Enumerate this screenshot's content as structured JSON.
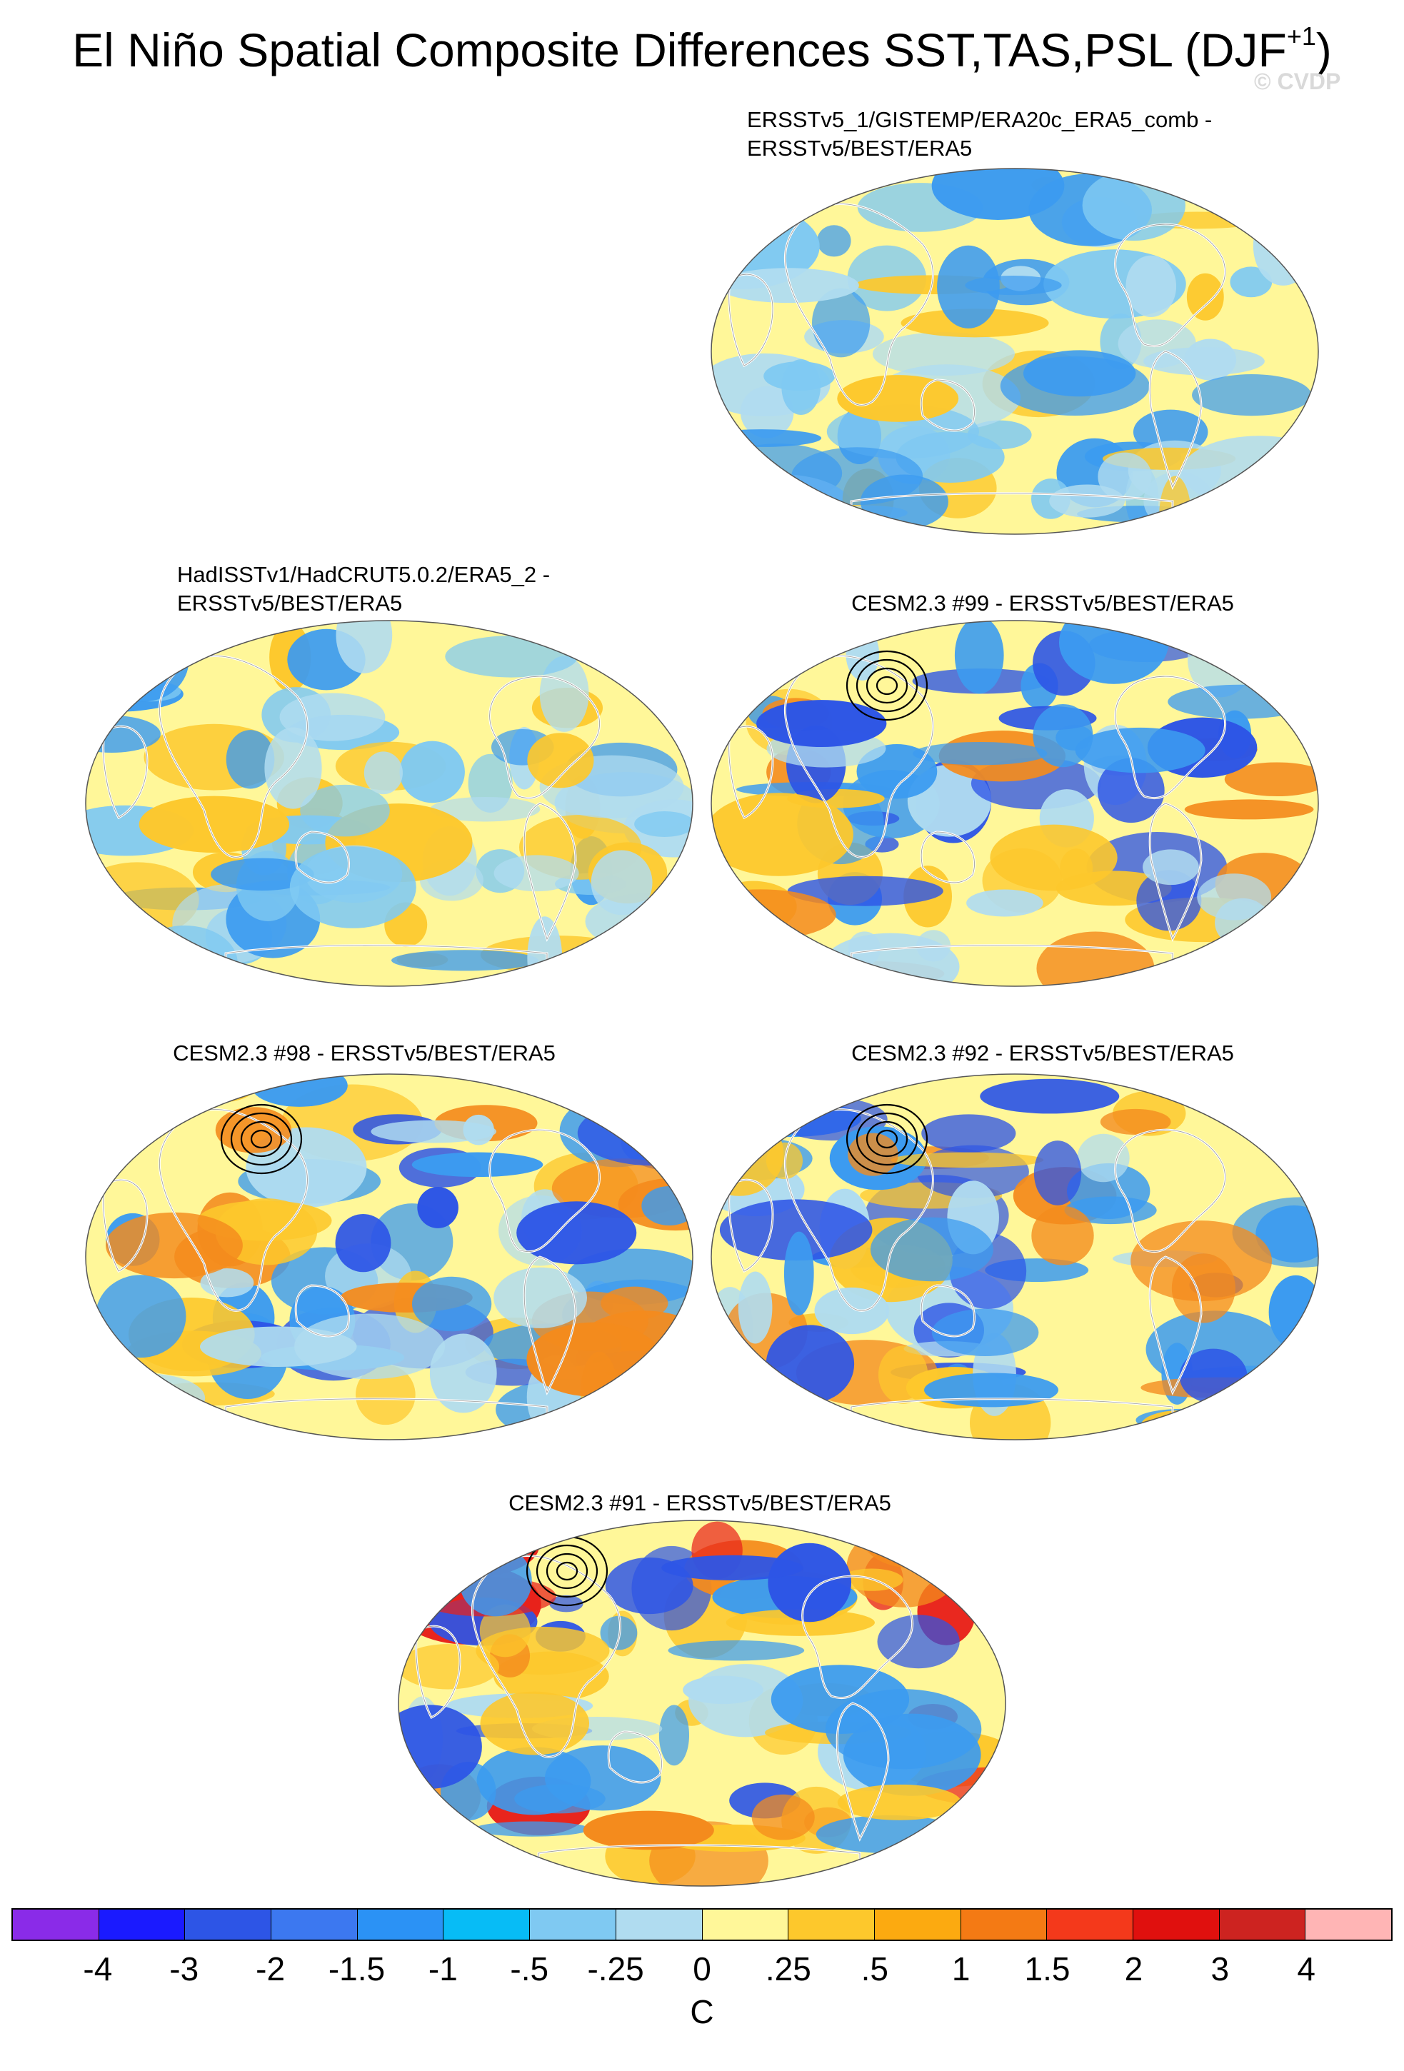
{
  "title": {
    "main": "El Niño Spatial Composite Differences SST,TAS,PSL (DJF",
    "sup": "+1",
    "close": ")"
  },
  "watermark": "© CVDP",
  "panels": [
    {
      "title_line1": "ERSSTv5_1/GISTEMP/ERA20c_ERA5_comb -",
      "title_line2": "ERSSTv5/BEST/ERA5",
      "dominant_color": "#fff799",
      "accent_colors": [
        "#b0dcf0",
        "#fdc82c",
        "#7fc9f2",
        "#3c9bf0"
      ]
    },
    {
      "title_line1": "HadISSTv1/HadCRUT5.0.2/ERA5_2 -",
      "title_line2": "ERSSTv5/BEST/ERA5",
      "dominant_color": "#fff799",
      "accent_colors": [
        "#b0dcf0",
        "#fdc82c",
        "#7fc9f2",
        "#3c9bf0"
      ]
    },
    {
      "title_line1": "CESM2.3 #99 - ERSSTv5/BEST/ERA5",
      "title_line2": "",
      "dominant_color": "#fff799",
      "accent_colors": [
        "#fdc82c",
        "#b0dcf0",
        "#3c9bf0",
        "#f48b1d",
        "#2d55e6"
      ]
    },
    {
      "title_line1": "CESM2.3 #98 - ERSSTv5/BEST/ERA5",
      "title_line2": "",
      "dominant_color": "#fff799",
      "accent_colors": [
        "#fdc82c",
        "#b0dcf0",
        "#3c9bf0",
        "#f48b1d",
        "#2d55e6"
      ]
    },
    {
      "title_line1": "CESM2.3 #92 - ERSSTv5/BEST/ERA5",
      "title_line2": "",
      "dominant_color": "#fff799",
      "accent_colors": [
        "#fdc82c",
        "#b0dcf0",
        "#3c9bf0",
        "#f48b1d",
        "#2d55e6"
      ]
    },
    {
      "title_line1": "CESM2.3 #91 - ERSSTv5/BEST/ERA5",
      "title_line2": "",
      "dominant_color": "#fff799",
      "accent_colors": [
        "#fdc82c",
        "#b0dcf0",
        "#3c9bf0",
        "#f48b1d",
        "#2d55e6",
        "#e8211b"
      ]
    }
  ],
  "chart_data": {
    "type": "heatmap",
    "title": "El Niño Spatial Composite Differences SST,TAS,PSL (DJF+1)",
    "projection": "global map (Robinson-like)",
    "colorbar": {
      "units": "C",
      "tick_labels": [
        "-4",
        "-3",
        "-2",
        "-1.5",
        "-1",
        "-.5",
        "-.25",
        "0",
        ".25",
        ".5",
        "1",
        "1.5",
        "2",
        "3",
        "4"
      ],
      "levels": [
        -4,
        -3,
        -2,
        -1.5,
        -1,
        -0.5,
        -0.25,
        0,
        0.25,
        0.5,
        1,
        1.5,
        2,
        3,
        4
      ],
      "colors": [
        "#8a2be8",
        "#1a1aff",
        "#2d55e6",
        "#3c78f0",
        "#2b92f5",
        "#07bcf6",
        "#7fc9f2",
        "#b0dcf0",
        "#fff799",
        "#fdc82c",
        "#fcaa10",
        "#f47a14",
        "#f4391b",
        "#e0100e",
        "#cd2320",
        "#ffb5b5"
      ]
    },
    "contours": "PSL anomaly contours (solid positive, dashed negative)"
  }
}
